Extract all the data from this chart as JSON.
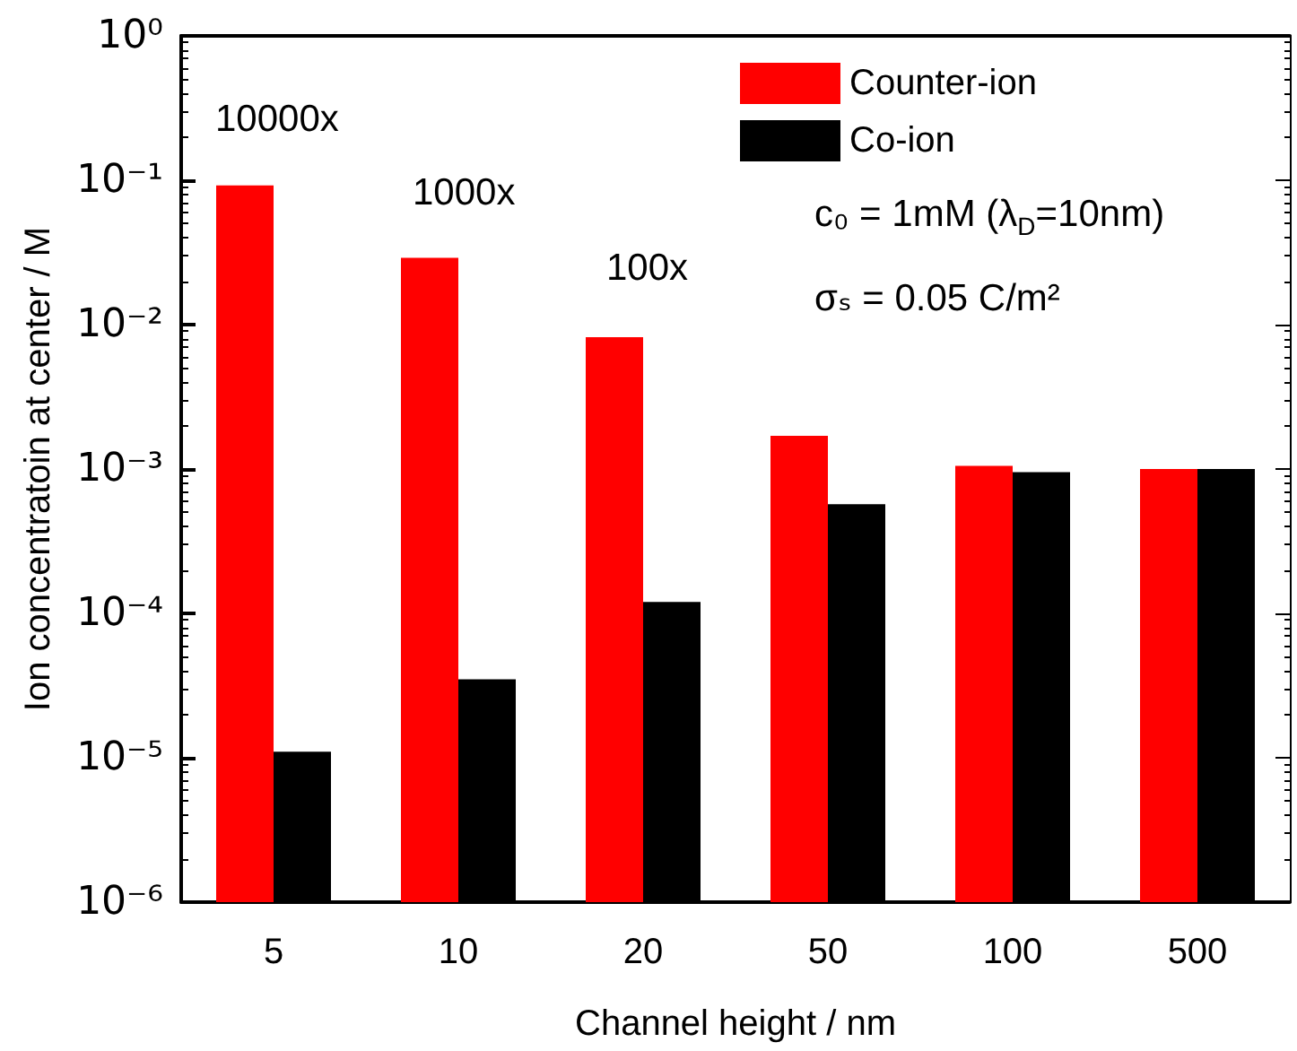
{
  "chart_data": {
    "type": "bar",
    "xlabel": "Channel height / nm",
    "ylabel": "Ion concentratoin at center / M",
    "categories": [
      "5",
      "10",
      "20",
      "50",
      "100",
      "500"
    ],
    "series": [
      {
        "name": "Counter-ion",
        "color": "#ff0000",
        "values": [
          0.092,
          0.029,
          0.0082,
          0.0017,
          0.00105,
          0.001
        ]
      },
      {
        "name": "Co-ion",
        "color": "#000000",
        "values": [
          1.1e-05,
          3.5e-05,
          0.00012,
          0.00057,
          0.00095,
          0.001
        ]
      }
    ],
    "log": "y",
    "ylim": [
      1e-06,
      1
    ],
    "yticks": [
      {
        "value": 1e-06,
        "label": "10⁻⁶"
      },
      {
        "value": 1e-05,
        "label": "10⁻⁵"
      },
      {
        "value": 0.0001,
        "label": "10⁻⁴"
      },
      {
        "value": 0.001,
        "label": "10⁻³"
      },
      {
        "value": 0.01,
        "label": "10⁻²"
      },
      {
        "value": 0.1,
        "label": "10⁻¹"
      },
      {
        "value": 1,
        "label": "10⁰"
      }
    ],
    "grid": false,
    "legend": "top right",
    "annotations": [
      "10000x",
      "1000x",
      "100x",
      "c₀ = 1mM (λ$_{D}$=10nm)",
      "σₛ = 0.05 C/m²"
    ]
  }
}
